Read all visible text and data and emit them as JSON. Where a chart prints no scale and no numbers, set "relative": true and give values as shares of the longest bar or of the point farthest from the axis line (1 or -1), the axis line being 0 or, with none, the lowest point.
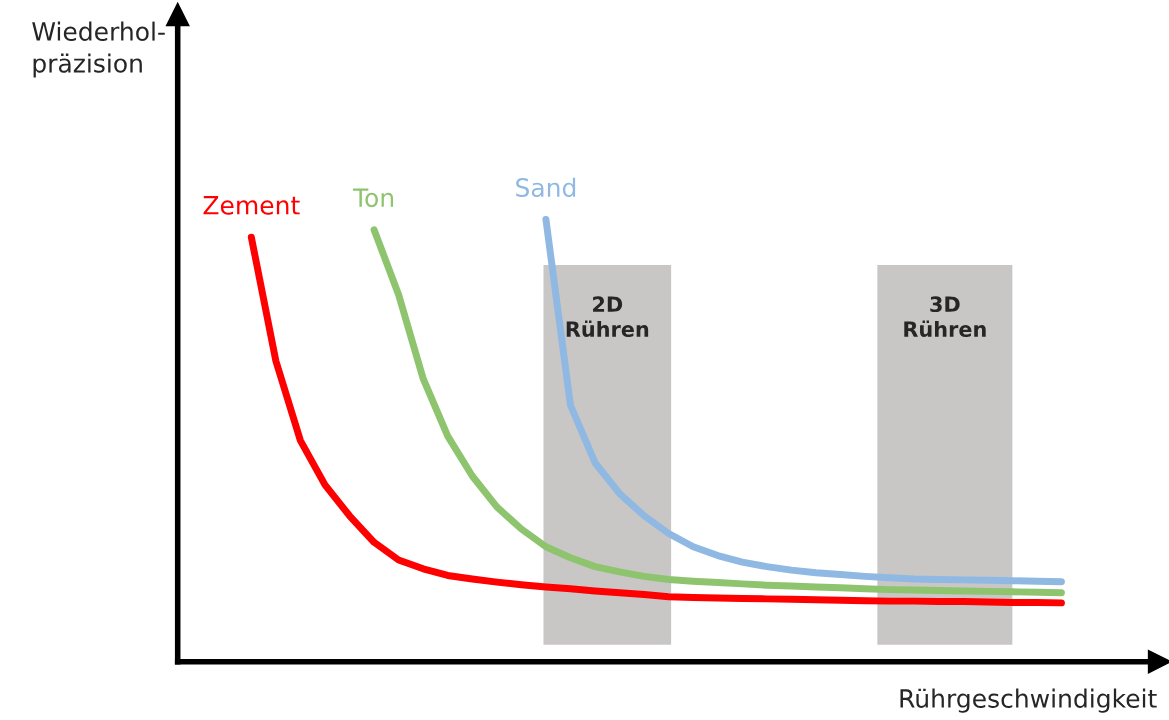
{
  "chart_data": {
    "type": "line",
    "relative": true,
    "xlabel": "Rührgeschwindigkeit",
    "legend": false,
    "marker": "none",
    "line_style": "solid",
    "categories": [
      null,
      null,
      null,
      null,
      null,
      null,
      null,
      null,
      null,
      null,
      null,
      null,
      null,
      null,
      null,
      null,
      null,
      null,
      null,
      null,
      null,
      null,
      null,
      null,
      null,
      null,
      null,
      null,
      null,
      null,
      null,
      null,
      null,
      null,
      null,
      null,
      null,
      null,
      null,
      null,
      null
    ],
    "series": [
      {
        "name": "Zement",
        "color": "#ff0000",
        "values": [
          null,
          null,
          null,
          0.96,
          0.68,
          0.5,
          0.4,
          0.33,
          0.27,
          0.23,
          0.21,
          0.195,
          0.187,
          0.18,
          0.174,
          0.169,
          0.165,
          0.16,
          0.156,
          0.152,
          0.147,
          0.145,
          0.144,
          0.143,
          0.142,
          0.141,
          0.14,
          0.139,
          0.138,
          0.137,
          0.137,
          0.136,
          0.136,
          0.135,
          0.134,
          0.134,
          0.133,
          null,
          null,
          null,
          null
        ]
      },
      {
        "name": "Ton",
        "color": "#8fc46f",
        "values": [
          null,
          null,
          null,
          null,
          null,
          null,
          null,
          null,
          0.977,
          0.83,
          0.64,
          0.51,
          0.42,
          0.35,
          0.3,
          0.26,
          0.235,
          0.215,
          0.203,
          0.193,
          0.186,
          0.182,
          0.179,
          0.176,
          0.173,
          0.171,
          0.169,
          0.167,
          0.165,
          0.163,
          0.162,
          0.161,
          0.16,
          0.159,
          0.158,
          0.157,
          0.156,
          null,
          null,
          null,
          null
        ]
      },
      {
        "name": "Sand",
        "color": "#8fb9e3",
        "values": [
          null,
          null,
          null,
          null,
          null,
          null,
          null,
          null,
          null,
          null,
          null,
          null,
          null,
          null,
          null,
          1.0,
          0.58,
          0.45,
          0.38,
          0.33,
          0.29,
          0.26,
          0.24,
          0.225,
          0.215,
          0.207,
          0.201,
          0.197,
          0.193,
          0.19,
          0.187,
          0.186,
          0.185,
          0.184,
          0.183,
          0.182,
          0.181,
          null,
          null,
          null,
          null
        ]
      }
    ],
    "annotations": [
      "Wiederhol-\npräzision",
      "2D\nRühren",
      "3D\nRühren"
    ]
  }
}
